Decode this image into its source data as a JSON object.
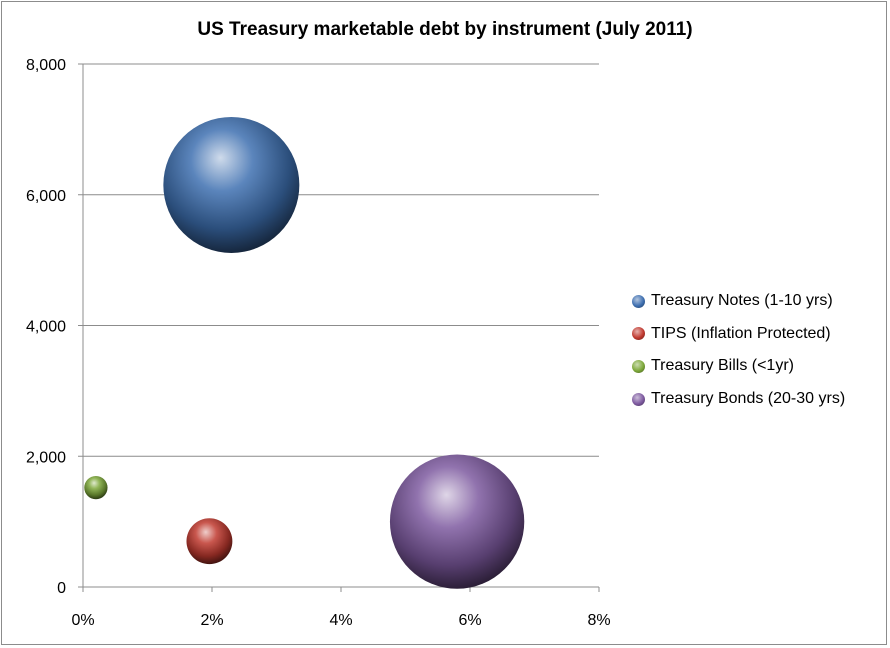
{
  "chart_data": {
    "type": "bubble",
    "title": "US Treasury marketable debt by instrument (July 2011)",
    "xlabel": "",
    "ylabel": "",
    "xlim": [
      0,
      0.08
    ],
    "ylim": [
      0,
      8000
    ],
    "x_tick_labels": [
      "0%",
      "2%",
      "4%",
      "6%",
      "8%"
    ],
    "x_ticks": [
      0,
      0.02,
      0.04,
      0.06,
      0.08
    ],
    "y_tick_labels": [
      "0",
      "2,000",
      "4,000",
      "6,000",
      "8,000"
    ],
    "y_ticks": [
      0,
      2000,
      4000,
      6000,
      8000
    ],
    "grid": "horizontal",
    "legend_position": "right",
    "series": [
      {
        "name": "Treasury Notes (1-10 yrs)",
        "x": 0.023,
        "y": 6150,
        "size": 6150,
        "color": "#3e6fb0"
      },
      {
        "name": "TIPS (Inflation Protected)",
        "x": 0.0196,
        "y": 700,
        "size": 700,
        "color": "#c0392f"
      },
      {
        "name": "Treasury Bills (<1yr)",
        "x": 0.002,
        "y": 1520,
        "size": 180,
        "color": "#7da83a"
      },
      {
        "name": "Treasury Bonds (20-30 yrs)",
        "x": 0.058,
        "y": 1000,
        "size": 6000,
        "color": "#7e5aa0"
      }
    ]
  }
}
